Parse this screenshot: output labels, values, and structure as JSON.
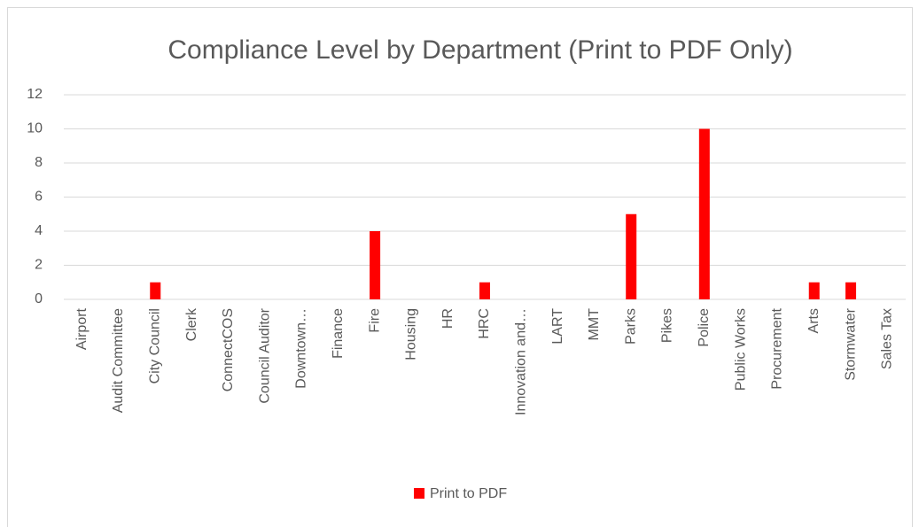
{
  "chart_data": {
    "type": "bar",
    "title": "Compliance Level by Department (Print to PDF Only)",
    "categories": [
      "Airport",
      "Audit Committee",
      "City Council",
      "Clerk",
      "ConnectCOS",
      "Council Auditor",
      "Downtown…",
      "Finance",
      "Fire",
      "Housing",
      "HR",
      "HRC",
      "Innovation and…",
      "LART",
      "MMT",
      "Parks",
      "Pikes",
      "Police",
      "Public Works",
      "Procurement",
      "Arts",
      "Stormwater",
      "Sales Tax"
    ],
    "series": [
      {
        "name": "Print to PDF",
        "color": "#ff0000",
        "values": [
          0,
          0,
          1,
          0,
          0,
          0,
          0,
          0,
          4,
          0,
          0,
          1,
          0,
          0,
          0,
          5,
          0,
          10,
          0,
          0,
          1,
          1,
          0
        ]
      }
    ],
    "ylim": [
      0,
      12
    ],
    "yticks": [
      0,
      2,
      4,
      6,
      8,
      10,
      12
    ],
    "grid": true,
    "legend": "bottom"
  }
}
